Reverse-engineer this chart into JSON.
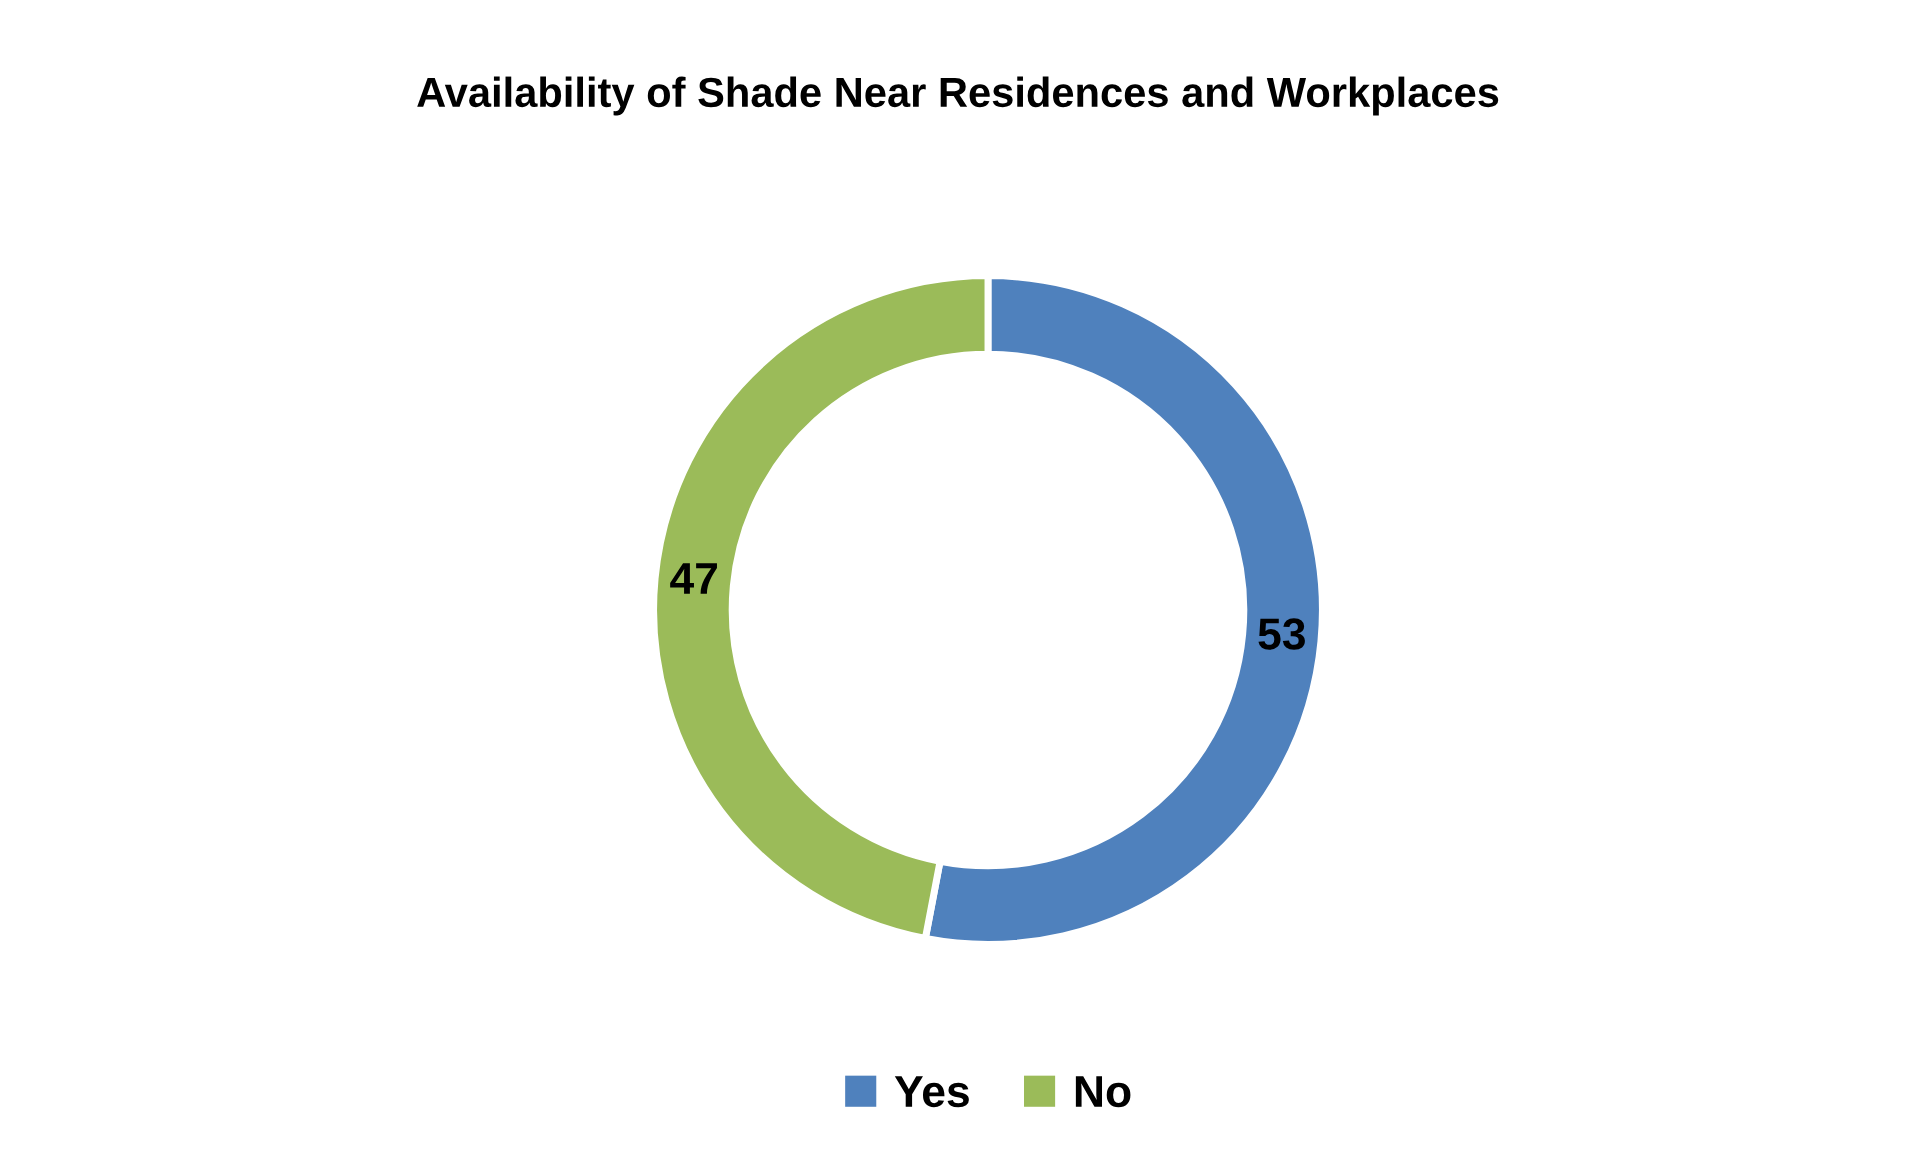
{
  "chart_data": {
    "type": "donut",
    "title": "Availability of Shade Near Residences and Workplaces",
    "categories": [
      "Yes",
      "No"
    ],
    "values": [
      53,
      47
    ],
    "colors": [
      "#4f81bd",
      "#9bbb59"
    ],
    "data_labels": true,
    "legend": "bottom"
  }
}
